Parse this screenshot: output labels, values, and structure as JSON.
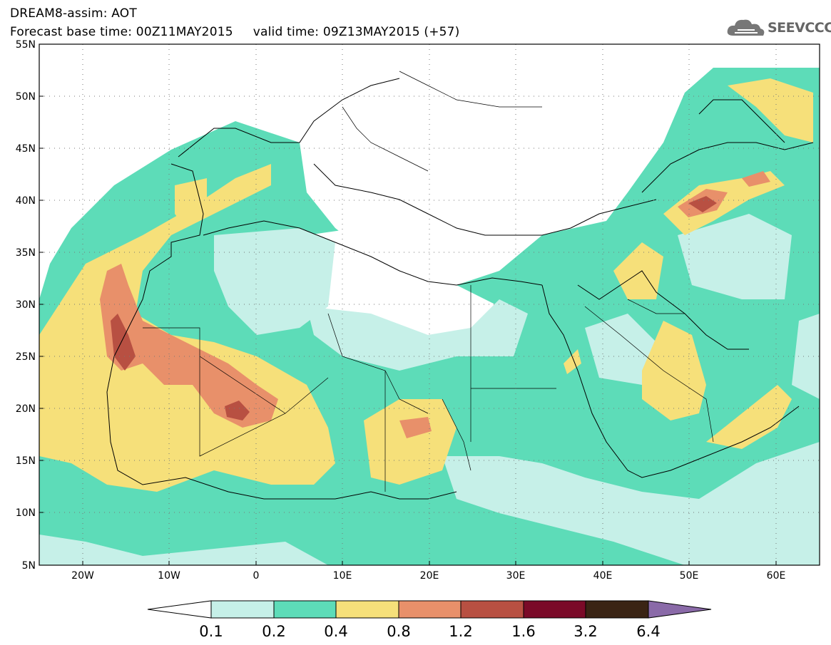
{
  "header": {
    "line1": "DREAM8-assim: AOT",
    "line2": "Forecast base time: 00Z11MAY2015     valid time: 09Z13MAY2015 (+57)"
  },
  "logo": {
    "text": "SEEVCCC",
    "icon": "cloud-icon"
  },
  "map": {
    "lat_labels": [
      "55N",
      "50N",
      "45N",
      "40N",
      "35N",
      "30N",
      "25N",
      "20N",
      "15N",
      "10N",
      "5N"
    ],
    "lon_labels": [
      "20W",
      "10W",
      "0",
      "10E",
      "20E",
      "30E",
      "40E",
      "50E",
      "60E"
    ],
    "lat_range": [
      5,
      55
    ],
    "lon_range": [
      -25,
      65
    ],
    "grid": "dotted",
    "fields": [
      "aerosol optical thickness contours"
    ]
  },
  "colorbar": {
    "levels": [
      "0.1",
      "0.2",
      "0.4",
      "0.8",
      "1.2",
      "1.6",
      "3.2",
      "6.4"
    ],
    "colors": [
      "#ffffff",
      "#c6f0e8",
      "#5ddcb8",
      "#f6e07a",
      "#e8906a",
      "#b85042",
      "#7a0a28",
      "#3a2414",
      "#8a6aa8"
    ]
  }
}
